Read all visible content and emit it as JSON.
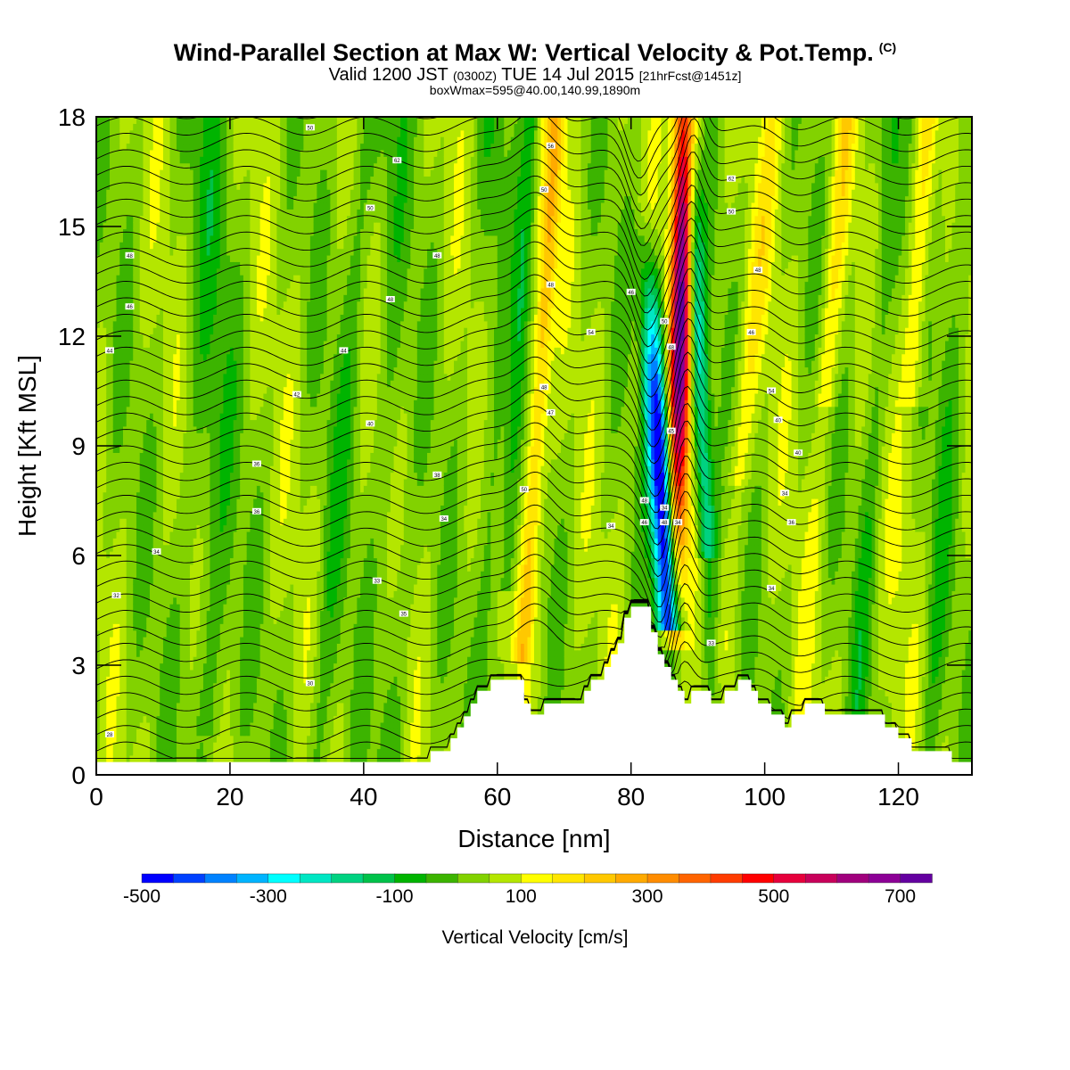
{
  "header": {
    "title": "Wind-Parallel Section at Max W: Vertical Velocity & Pot.Temp.",
    "copyright": "(C)",
    "valid_prefix": "Valid 1200 JST",
    "valid_utc": "(0300Z)",
    "valid_date": "TUE 14 Jul 2015",
    "forecast_info": "[21hrFcst@1451z]",
    "box_info": "boxWmax=595@40.00,140.99,1890m"
  },
  "chart_data": {
    "type": "contour",
    "xlabel": "Distance [nm]",
    "ylabel": "Height [Kft MSL]",
    "xlim": [
      0,
      131
    ],
    "ylim": [
      0,
      18
    ],
    "xticks": [
      0,
      20,
      40,
      60,
      80,
      100,
      120
    ],
    "yticks": [
      0,
      3,
      6,
      9,
      12,
      15,
      18
    ],
    "colorbar": {
      "title": "Vertical Velocity [cm/s]",
      "levels": [
        -500,
        -450,
        -400,
        -350,
        -300,
        -250,
        -200,
        -150,
        -100,
        -50,
        0,
        50,
        100,
        150,
        200,
        250,
        300,
        350,
        400,
        450,
        500,
        550,
        600,
        650,
        700,
        750
      ],
      "tick_labels": [
        "-500",
        "-300",
        "-100",
        "100",
        "300",
        "500",
        "700"
      ],
      "colors": [
        "#0000ff",
        "#0041ff",
        "#0082ff",
        "#00b4ff",
        "#00ffff",
        "#00e6c3",
        "#00d281",
        "#00c24a",
        "#00b400",
        "#3cb400",
        "#82d200",
        "#b4e600",
        "#ffff00",
        "#ffe600",
        "#ffc800",
        "#ffaa00",
        "#ff8c00",
        "#ff6400",
        "#ff3c00",
        "#ff0000",
        "#e6003c",
        "#c8005a",
        "#a0007d",
        "#8c0096",
        "#6400a0"
      ]
    },
    "vertical_velocity_features": [
      {
        "name": "downdraft core",
        "x_nm": 82.5,
        "height_kft": 9.0,
        "value_cm_s": -500
      },
      {
        "name": "updraft core",
        "x_nm": 87.5,
        "height_kft": 13.0,
        "value_cm_s": 595
      },
      {
        "name": "lee updraft",
        "x_nm": 66,
        "height_kft": 12.0,
        "value_cm_s": 150
      }
    ],
    "theta_contour_labels": [
      {
        "x": 32,
        "y": 17.7,
        "text": "50"
      },
      {
        "x": 45,
        "y": 16.8,
        "text": "62"
      },
      {
        "x": 41,
        "y": 15.5,
        "text": "50"
      },
      {
        "x": 5,
        "y": 14.2,
        "text": "48"
      },
      {
        "x": 51,
        "y": 14.2,
        "text": "48"
      },
      {
        "x": 5,
        "y": 12.8,
        "text": "46"
      },
      {
        "x": 44,
        "y": 13.0,
        "text": "48"
      },
      {
        "x": 2,
        "y": 11.6,
        "text": "44"
      },
      {
        "x": 37,
        "y": 11.6,
        "text": "44"
      },
      {
        "x": 30,
        "y": 10.4,
        "text": "42"
      },
      {
        "x": 41,
        "y": 9.6,
        "text": "40"
      },
      {
        "x": 24,
        "y": 8.5,
        "text": "36"
      },
      {
        "x": 51,
        "y": 8.2,
        "text": "38"
      },
      {
        "x": 24,
        "y": 7.2,
        "text": "36"
      },
      {
        "x": 52,
        "y": 7.0,
        "text": "34"
      },
      {
        "x": 9,
        "y": 6.1,
        "text": "34"
      },
      {
        "x": 42,
        "y": 5.3,
        "text": "33"
      },
      {
        "x": 3,
        "y": 4.9,
        "text": "32"
      },
      {
        "x": 46,
        "y": 4.4,
        "text": "35"
      },
      {
        "x": 32,
        "y": 2.5,
        "text": "30"
      },
      {
        "x": 2,
        "y": 1.1,
        "text": "28"
      },
      {
        "x": 68,
        "y": 17.2,
        "text": "56"
      },
      {
        "x": 67,
        "y": 16.0,
        "text": "50"
      },
      {
        "x": 68,
        "y": 13.4,
        "text": "48"
      },
      {
        "x": 74,
        "y": 12.1,
        "text": "54"
      },
      {
        "x": 67,
        "y": 10.6,
        "text": "48"
      },
      {
        "x": 68,
        "y": 9.9,
        "text": "47"
      },
      {
        "x": 64,
        "y": 7.8,
        "text": "50"
      },
      {
        "x": 77,
        "y": 6.8,
        "text": "34"
      },
      {
        "x": 80,
        "y": 13.2,
        "text": "46"
      },
      {
        "x": 85,
        "y": 12.4,
        "text": "50"
      },
      {
        "x": 86,
        "y": 11.7,
        "text": "48"
      },
      {
        "x": 86,
        "y": 9.4,
        "text": "45"
      },
      {
        "x": 82,
        "y": 7.5,
        "text": "48"
      },
      {
        "x": 85,
        "y": 7.3,
        "text": "34"
      },
      {
        "x": 82,
        "y": 6.9,
        "text": "46"
      },
      {
        "x": 85,
        "y": 6.9,
        "text": "48"
      },
      {
        "x": 87,
        "y": 6.9,
        "text": "34"
      },
      {
        "x": 95,
        "y": 16.3,
        "text": "62"
      },
      {
        "x": 95,
        "y": 15.4,
        "text": "50"
      },
      {
        "x": 99,
        "y": 13.8,
        "text": "48"
      },
      {
        "x": 98,
        "y": 12.1,
        "text": "46"
      },
      {
        "x": 101,
        "y": 10.5,
        "text": "54"
      },
      {
        "x": 102,
        "y": 9.7,
        "text": "40"
      },
      {
        "x": 105,
        "y": 8.8,
        "text": "40"
      },
      {
        "x": 103,
        "y": 7.7,
        "text": "34"
      },
      {
        "x": 104,
        "y": 6.9,
        "text": "36"
      },
      {
        "x": 101,
        "y": 5.1,
        "text": "34"
      },
      {
        "x": 92,
        "y": 3.6,
        "text": "33"
      }
    ],
    "terrain_kft": [
      [
        0,
        0.35
      ],
      [
        50,
        0.35
      ],
      [
        50,
        0.65
      ],
      [
        53,
        0.65
      ],
      [
        53,
        1.0
      ],
      [
        54,
        1.0
      ],
      [
        54,
        1.3
      ],
      [
        55,
        1.3
      ],
      [
        55,
        1.6
      ],
      [
        56,
        1.6
      ],
      [
        56,
        1.95
      ],
      [
        57,
        1.95
      ],
      [
        57,
        2.3
      ],
      [
        59,
        2.3
      ],
      [
        59,
        2.6
      ],
      [
        64,
        2.6
      ],
      [
        64,
        1.95
      ],
      [
        65,
        1.95
      ],
      [
        65,
        1.65
      ],
      [
        67,
        1.65
      ],
      [
        67,
        1.95
      ],
      [
        73,
        1.95
      ],
      [
        73,
        2.3
      ],
      [
        74,
        2.3
      ],
      [
        74,
        2.6
      ],
      [
        76,
        2.6
      ],
      [
        76,
        2.95
      ],
      [
        77,
        2.95
      ],
      [
        77,
        3.3
      ],
      [
        78,
        3.3
      ],
      [
        78,
        3.6
      ],
      [
        79,
        3.6
      ],
      [
        79,
        4.3
      ],
      [
        80,
        4.3
      ],
      [
        80,
        4.6
      ],
      [
        83,
        4.6
      ],
      [
        83,
        3.9
      ],
      [
        84,
        3.9
      ],
      [
        84,
        3.3
      ],
      [
        85,
        3.3
      ],
      [
        85,
        2.95
      ],
      [
        86,
        2.95
      ],
      [
        86,
        2.6
      ],
      [
        87,
        2.6
      ],
      [
        87,
        2.3
      ],
      [
        88,
        2.3
      ],
      [
        88,
        1.95
      ],
      [
        89,
        1.95
      ],
      [
        89,
        2.3
      ],
      [
        92,
        2.3
      ],
      [
        92,
        1.95
      ],
      [
        94,
        1.95
      ],
      [
        94,
        2.3
      ],
      [
        96,
        2.3
      ],
      [
        96,
        2.6
      ],
      [
        98,
        2.6
      ],
      [
        98,
        2.3
      ],
      [
        99,
        2.3
      ],
      [
        99,
        1.95
      ],
      [
        101,
        1.95
      ],
      [
        101,
        1.65
      ],
      [
        103,
        1.65
      ],
      [
        103,
        1.3
      ],
      [
        104,
        1.3
      ],
      [
        104,
        1.65
      ],
      [
        106,
        1.65
      ],
      [
        106,
        1.95
      ],
      [
        109,
        1.95
      ],
      [
        109,
        1.65
      ],
      [
        118,
        1.65
      ],
      [
        118,
        1.3
      ],
      [
        120,
        1.3
      ],
      [
        120,
        1.0
      ],
      [
        122,
        1.0
      ],
      [
        122,
        0.65
      ],
      [
        128,
        0.65
      ],
      [
        128,
        0.35
      ],
      [
        131,
        0.35
      ]
    ]
  }
}
